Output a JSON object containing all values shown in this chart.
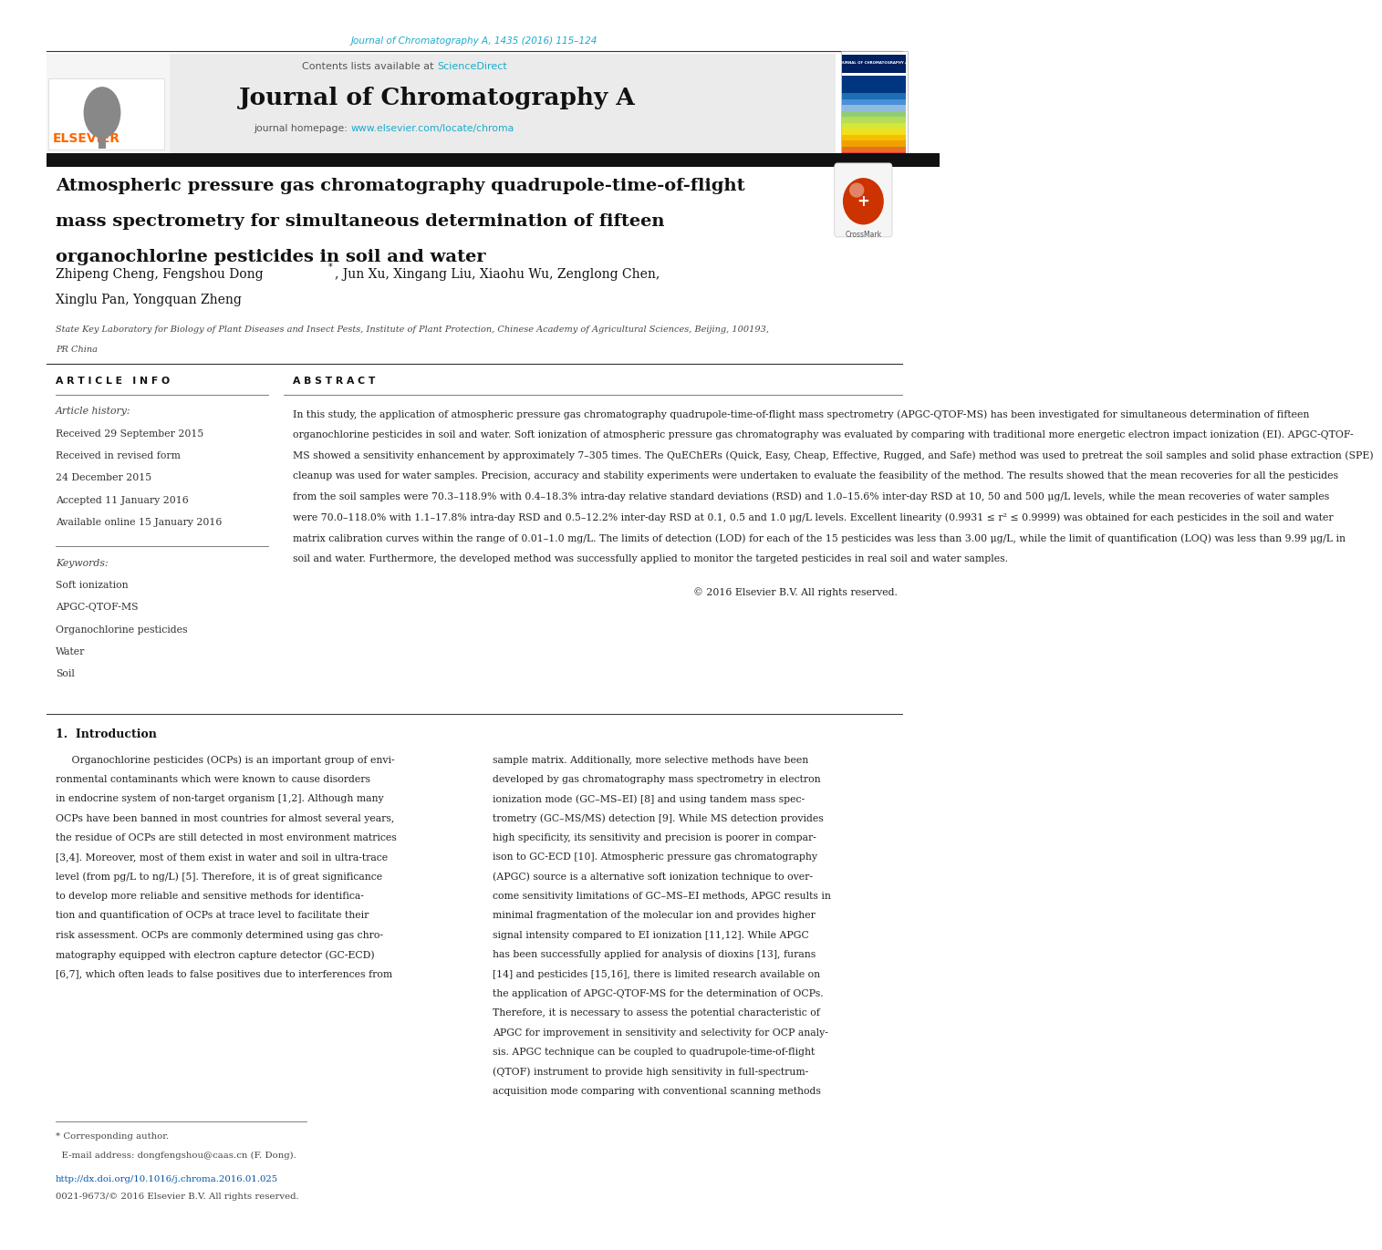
{
  "page_width": 10.2,
  "page_height": 13.51,
  "bg_color": "#ffffff",
  "journal_ref": "Journal of Chromatography A, 1435 (2016) 115–124",
  "journal_ref_color": "#1aabcc",
  "contents_text": "Contents lists available at ",
  "sciencedirect_text": "ScienceDirect",
  "sciencedirect_color": "#1aabcc",
  "journal_name": "Journal of Chromatography A",
  "homepage_label": "journal homepage: ",
  "homepage_url": "www.elsevier.com/locate/chroma",
  "homepage_url_color": "#1aabcc",
  "elsevier_color": "#ff6600",
  "title_line1": "Atmospheric pressure gas chromatography quadrupole-time-of-flight",
  "title_line2": "mass spectrometry for simultaneous determination of fifteen",
  "title_line3": "organochlorine pesticides in soil and water",
  "authors_line1": "Zhipeng Cheng, Fengshou Dong",
  "authors_line1b": ", Jun Xu, Xingang Liu, Xiaohu Wu, Zenglong Chen,",
  "authors_line2": "Xinglu Pan, Yongquan Zheng",
  "affiliation_line1": "State Key Laboratory for Biology of Plant Diseases and Insect Pests, Institute of Plant Protection, Chinese Academy of Agricultural Sciences, Beijing, 100193,",
  "affiliation_line2": "PR China",
  "article_info_header": "A R T I C L E   I N F O",
  "abstract_header": "A B S T R A C T",
  "article_history_label": "Article history:",
  "received1": "Received 29 September 2015",
  "received2": "Received in revised form",
  "received3": "24 December 2015",
  "accepted": "Accepted 11 January 2016",
  "available": "Available online 15 January 2016",
  "keywords_label": "Keywords:",
  "keywords": [
    "Soft ionization",
    "APGC-QTOF-MS",
    "Organochlorine pesticides",
    "Water",
    "Soil"
  ],
  "abstract_lines": [
    "In this study, the application of atmospheric pressure gas chromatography quadrupole-time-of-flight mass spectrometry (APGC-QTOF-MS) has been investigated for simultaneous determination of fifteen",
    "organochlorine pesticides in soil and water. Soft ionization of atmospheric pressure gas chromatography was evaluated by comparing with traditional more energetic electron impact ionization (EI). APGC-QTOF-",
    "MS showed a sensitivity enhancement by approximately 7–305 times. The QuEChERs (Quick, Easy, Cheap, Effective, Rugged, and Safe) method was used to pretreat the soil samples and solid phase extraction (SPE)",
    "cleanup was used for water samples. Precision, accuracy and stability experiments were undertaken to evaluate the feasibility of the method. The results showed that the mean recoveries for all the pesticides",
    "from the soil samples were 70.3–118.9% with 0.4–18.3% intra-day relative standard deviations (RSD) and 1.0–15.6% inter-day RSD at 10, 50 and 500 μg/L levels, while the mean recoveries of water samples",
    "were 70.0–118.0% with 1.1–17.8% intra-day RSD and 0.5–12.2% inter-day RSD at 0.1, 0.5 and 1.0 μg/L levels. Excellent linearity (0.9931 ≤ r² ≤ 0.9999) was obtained for each pesticides in the soil and water",
    "matrix calibration curves within the range of 0.01–1.0 mg/L. The limits of detection (LOD) for each of the 15 pesticides was less than 3.00 μg/L, while the limit of quantification (LOQ) was less than 9.99 μg/L in",
    "soil and water. Furthermore, the developed method was successfully applied to monitor the targeted pesticides in real soil and water samples."
  ],
  "copyright": "© 2016 Elsevier B.V. All rights reserved.",
  "intro_header": "1.  Introduction",
  "intro_lines_left": [
    "     Organochlorine pesticides (OCPs) is an important group of envi-",
    "ronmental contaminants which were known to cause disorders",
    "in endocrine system of non-target organism [1,2]. Although many",
    "OCPs have been banned in most countries for almost several years,",
    "the residue of OCPs are still detected in most environment matrices",
    "[3,4]. Moreover, most of them exist in water and soil in ultra-trace",
    "level (from pg/L to ng/L) [5]. Therefore, it is of great significance",
    "to develop more reliable and sensitive methods for identifica-",
    "tion and quantification of OCPs at trace level to facilitate their",
    "risk assessment. OCPs are commonly determined using gas chro-",
    "matography equipped with electron capture detector (GC-ECD)",
    "[6,7], which often leads to false positives due to interferences from"
  ],
  "intro_lines_right": [
    "sample matrix. Additionally, more selective methods have been",
    "developed by gas chromatography mass spectrometry in electron",
    "ionization mode (GC–MS–EI) [8] and using tandem mass spec-",
    "trometry (GC–MS/MS) detection [9]. While MS detection provides",
    "high specificity, its sensitivity and precision is poorer in compar-",
    "ison to GC-ECD [10]. Atmospheric pressure gas chromatography",
    "(APGC) source is a alternative soft ionization technique to over-",
    "come sensitivity limitations of GC–MS–EI methods, APGC results in",
    "minimal fragmentation of the molecular ion and provides higher",
    "signal intensity compared to EI ionization [11,12]. While APGC",
    "has been successfully applied for analysis of dioxins [13], furans",
    "[14] and pesticides [15,16], there is limited research available on",
    "the application of APGC-QTOF-MS for the determination of OCPs.",
    "Therefore, it is necessary to assess the potential characteristic of",
    "APGC for improvement in sensitivity and selectivity for OCP analy-",
    "sis. APGC technique can be coupled to quadrupole-time-of-flight",
    "(QTOF) instrument to provide high sensitivity in full-spectrum-",
    "acquisition mode comparing with conventional scanning methods"
  ],
  "footnote_corresponding": "* Corresponding author.",
  "footnote_email": "  E-mail address: dongfengshou@caas.cn (F. Dong).",
  "footnote_doi": "http://dx.doi.org/10.1016/j.chroma.2016.01.025",
  "footnote_issn": "0021-9673/© 2016 Elsevier B.V. All rights reserved.",
  "doi_color": "#0055aa",
  "stripe_colors": [
    "#003580",
    "#003580",
    "#003580",
    "#1e6db5",
    "#4a90d9",
    "#90bbdd",
    "#90cc77",
    "#b5dd55",
    "#d4e83a",
    "#f0e020",
    "#f5c000",
    "#f0a000",
    "#e87020",
    "#e04040"
  ]
}
